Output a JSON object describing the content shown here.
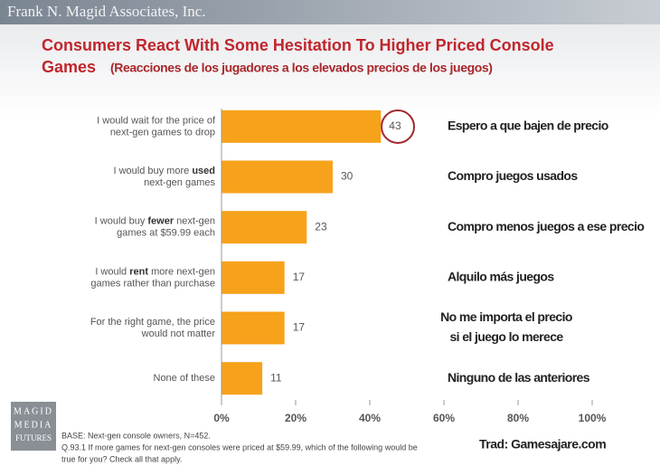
{
  "header": "Frank N. Magid Associates, Inc.",
  "chart_data": {
    "type": "barh",
    "title": [
      "Consumers React With Some Hesitation To Higher Priced Console",
      "Games"
    ],
    "subtitle": "(Reacciones de los jugadores a los elevados precios de los juegos)",
    "categories": [
      [
        [
          {
            "text": "I would wait for the price of"
          }
        ],
        [
          {
            "text": "next-gen games to drop"
          }
        ]
      ],
      [
        [
          {
            "text": "I would buy more "
          },
          {
            "text": "used",
            "bold": true
          }
        ],
        [
          {
            "text": "next-gen games"
          }
        ]
      ],
      [
        [
          {
            "text": "I would buy "
          },
          {
            "text": "fewer",
            "bold": true
          },
          {
            "text": " next-gen"
          }
        ],
        [
          {
            "text": "games at $59.99 each"
          }
        ]
      ],
      [
        [
          {
            "text": "I would "
          },
          {
            "text": "rent",
            "bold": true
          },
          {
            "text": " more next-gen"
          }
        ],
        [
          {
            "text": "games rather than purchase"
          }
        ]
      ],
      [
        [
          {
            "text": "For the right game, the price"
          }
        ],
        [
          {
            "text": "would not matter"
          }
        ]
      ],
      [
        [
          {
            "text": "None of these"
          }
        ]
      ]
    ],
    "values": [
      43,
      30,
      23,
      17,
      17,
      11
    ],
    "color": "#f7a21b",
    "xlim": [
      0,
      100
    ],
    "xticks": [
      {
        "value": 0,
        "label": "0%"
      },
      {
        "value": 20,
        "label": "20%"
      },
      {
        "value": 40,
        "label": "40%"
      },
      {
        "value": 60,
        "label": "60%"
      },
      {
        "value": 80,
        "label": "80%"
      },
      {
        "value": 100,
        "label": "100%"
      }
    ],
    "translations": [
      [
        "Espero a que bajen de precio"
      ],
      [
        "Compro juegos usados"
      ],
      [
        "Compro menos juegos a ese precio"
      ],
      [
        "Alquilo más juegos"
      ],
      [
        "No me importa el precio",
        "si el juego lo merece"
      ],
      [
        "Ninguno de las anteriores"
      ]
    ],
    "footnote": [
      "BASE: Next-gen console owners, N=452.",
      "Q.93.1 If more games for next-gen consoles were priced at $59.99, which of the following would be",
      "true for you? Check all that apply."
    ],
    "credit": "Trad: Gamesajare.com"
  },
  "logo": [
    "MAGID",
    "MEDIA",
    "FUTURES"
  ]
}
